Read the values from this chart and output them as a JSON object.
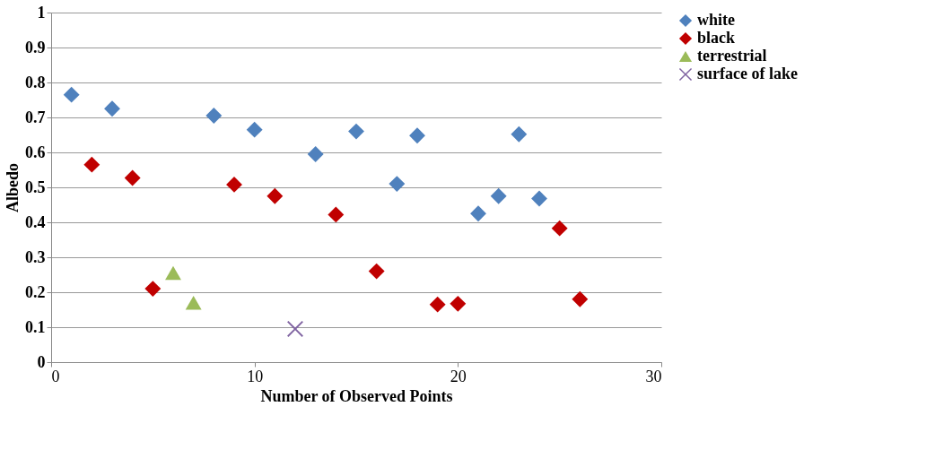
{
  "chart_data": {
    "type": "scatter",
    "xlabel": "Number of Observed Points",
    "ylabel": "Albedo",
    "xlim": [
      0,
      30
    ],
    "xticks": [
      0,
      10,
      20,
      30
    ],
    "ylim": [
      0,
      1
    ],
    "yticks": [
      0,
      0.1,
      0.2,
      0.3,
      0.4,
      0.5,
      0.6,
      0.7,
      0.8,
      0.9,
      1
    ],
    "grid": "y",
    "legend": "right",
    "series": [
      {
        "name": "white",
        "color": "#4f81bd",
        "marker": "diamond",
        "x": [
          1,
          3,
          8,
          10,
          13,
          15,
          17,
          18,
          21,
          22,
          23,
          24
        ],
        "values": [
          0.765,
          0.725,
          0.705,
          0.665,
          0.595,
          0.66,
          0.51,
          0.648,
          0.425,
          0.475,
          0.652,
          0.468
        ]
      },
      {
        "name": "black",
        "color": "#c00000",
        "marker": "diamond",
        "x": [
          2,
          4,
          5,
          9,
          11,
          14,
          16,
          19,
          20,
          25,
          26
        ],
        "values": [
          0.565,
          0.527,
          0.21,
          0.508,
          0.475,
          0.422,
          0.26,
          0.165,
          0.167,
          0.383,
          0.18
        ]
      },
      {
        "name": "terrestrial",
        "color": "#9bbb59",
        "marker": "triangle",
        "x": [
          6,
          7
        ],
        "values": [
          0.255,
          0.17
        ]
      },
      {
        "name": "surface of lake",
        "color": "#8064a2",
        "marker": "cross",
        "x": [
          12
        ],
        "values": [
          0.095
        ]
      }
    ]
  }
}
